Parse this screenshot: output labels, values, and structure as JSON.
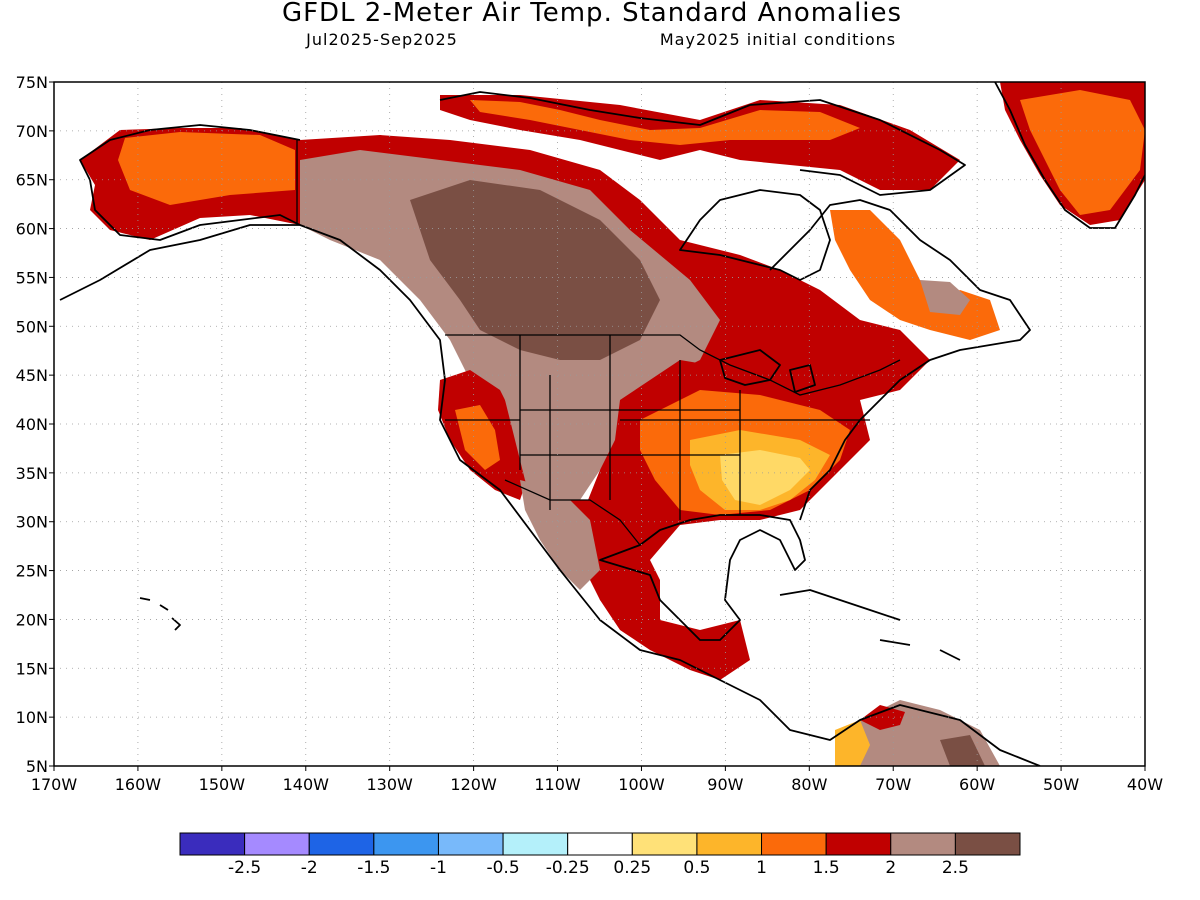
{
  "header": {
    "title": "GFDL 2-Meter Air Temp. Standard Anomalies",
    "period": "Jul2025-Sep2025",
    "init": "May2025 initial conditions"
  },
  "map": {
    "lat_labels": [
      "75N",
      "70N",
      "65N",
      "60N",
      "55N",
      "50N",
      "45N",
      "40N",
      "35N",
      "30N",
      "25N",
      "20N",
      "15N",
      "10N",
      "5N"
    ],
    "lon_labels": [
      "170W",
      "160W",
      "150W",
      "140W",
      "130W",
      "120W",
      "110W",
      "100W",
      "90W",
      "80W",
      "70W",
      "60W",
      "50W",
      "40W"
    ],
    "colors": {
      "ocean": "#ffffff",
      "land_neutral": "#ffffff",
      "orange_light": "#ffd966",
      "orange": "#fdb52a",
      "orange_dark": "#fb6a0a",
      "red": "#c00000",
      "brown_light": "#b38a80",
      "brown_dark": "#7a4f44"
    }
  },
  "legend": {
    "labels": [
      "-2.5",
      "-2",
      "-1.5",
      "-1",
      "-0.5",
      "-0.25",
      "0.25",
      "0.5",
      "1",
      "1.5",
      "2",
      "2.5"
    ],
    "colors": [
      "#3a2cbd",
      "#a58aff",
      "#1e64e6",
      "#3c96f0",
      "#78b9fa",
      "#b4f0fa",
      "#ffffff",
      "#ffe178",
      "#fdb52a",
      "#fb6a0a",
      "#c00000",
      "#b38a80",
      "#7a4f44"
    ]
  }
}
